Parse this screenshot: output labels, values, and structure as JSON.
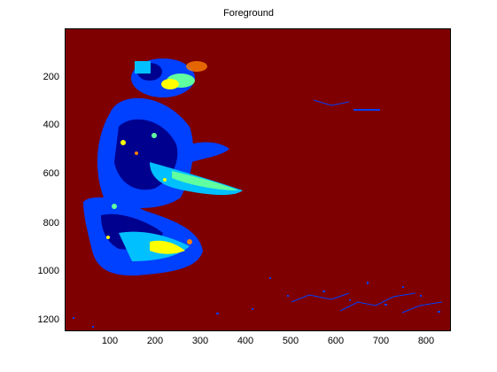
{
  "figure": {
    "title": "Foreground"
  },
  "chart_data": {
    "type": "heatmap",
    "title": "Foreground",
    "xlabel": "",
    "ylabel": "",
    "xlim": [
      0,
      850
    ],
    "ylim": [
      1250,
      30
    ],
    "x_ticks": [
      100,
      200,
      300,
      400,
      500,
      600,
      700,
      800
    ],
    "x_tick_labels": [
      "100",
      "200",
      "300",
      "400",
      "500",
      "600",
      "700",
      "800"
    ],
    "y_ticks": [
      200,
      400,
      600,
      800,
      1000,
      1200
    ],
    "y_tick_labels": [
      "200",
      "400",
      "600",
      "800",
      "1000",
      "1200"
    ],
    "y_axis_direction": "reversed",
    "colormap": "jet",
    "background_color": "#7f0000",
    "foreground_colors": [
      "#00008f",
      "#0040ff",
      "#00c0ff",
      "#60ffa0",
      "#ffff00",
      "#ff8000"
    ]
  }
}
